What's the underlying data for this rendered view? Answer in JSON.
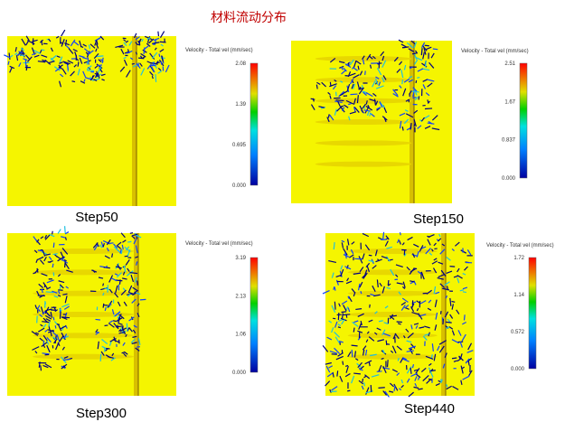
{
  "title": "材料流动分布",
  "panels": [
    {
      "label": "Step50",
      "legend_title": "Velocity - Total vel (mm/sec)",
      "colorbar_ticks": [
        "2.08",
        "1.39",
        "0.695",
        "0.000"
      ]
    },
    {
      "label": "Step150",
      "legend_title": "Velocity - Total vel (mm/sec)",
      "colorbar_ticks": [
        "2.51",
        "1.67",
        "0.837",
        "0.000"
      ]
    },
    {
      "label": "Step300",
      "legend_title": "Velocity - Total vel (mm/sec)",
      "colorbar_ticks": [
        "3.19",
        "2.13",
        "1.06",
        "0.000"
      ]
    },
    {
      "label": "Step440",
      "legend_title": "Velocity - Total vel (mm/sec)",
      "colorbar_ticks": [
        "1.72",
        "1.14",
        "0.572",
        "0.000"
      ]
    }
  ]
}
